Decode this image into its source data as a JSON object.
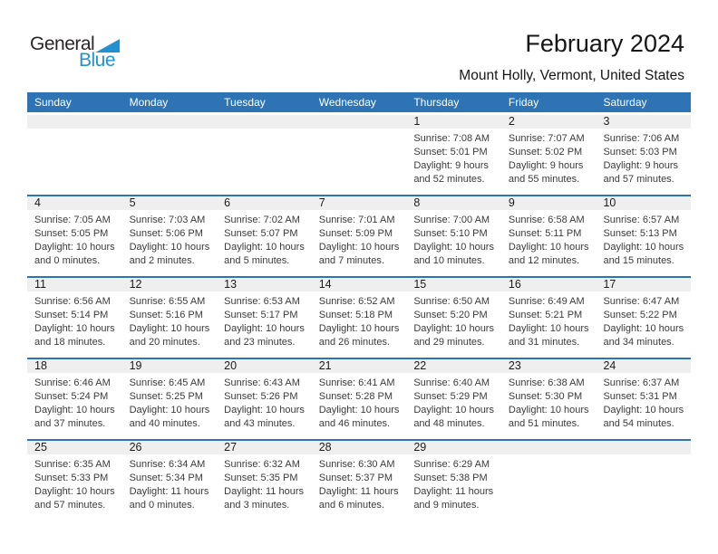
{
  "logo": {
    "part1": "General",
    "part2": "Blue",
    "triangle_icon": "blue-right-triangle"
  },
  "title": "February 2024",
  "subtitle": "Mount Holly, Vermont, United States",
  "colors": {
    "header_blue": "#2e74b5",
    "band_gray": "#efefef",
    "logo_blue": "#2191d0",
    "cell_text": "#3b3b3b"
  },
  "weekdays": [
    "Sunday",
    "Monday",
    "Tuesday",
    "Wednesday",
    "Thursday",
    "Friday",
    "Saturday"
  ],
  "labels": {
    "sunrise": "Sunrise:",
    "sunset": "Sunset:",
    "daylight": "Daylight:"
  },
  "weeks": [
    [
      null,
      null,
      null,
      null,
      {
        "day": "1",
        "sunrise": "7:08 AM",
        "sunset": "5:01 PM",
        "daylight": "9 hours and 52 minutes."
      },
      {
        "day": "2",
        "sunrise": "7:07 AM",
        "sunset": "5:02 PM",
        "daylight": "9 hours and 55 minutes."
      },
      {
        "day": "3",
        "sunrise": "7:06 AM",
        "sunset": "5:03 PM",
        "daylight": "9 hours and 57 minutes."
      }
    ],
    [
      {
        "day": "4",
        "sunrise": "7:05 AM",
        "sunset": "5:05 PM",
        "daylight": "10 hours and 0 minutes."
      },
      {
        "day": "5",
        "sunrise": "7:03 AM",
        "sunset": "5:06 PM",
        "daylight": "10 hours and 2 minutes."
      },
      {
        "day": "6",
        "sunrise": "7:02 AM",
        "sunset": "5:07 PM",
        "daylight": "10 hours and 5 minutes."
      },
      {
        "day": "7",
        "sunrise": "7:01 AM",
        "sunset": "5:09 PM",
        "daylight": "10 hours and 7 minutes."
      },
      {
        "day": "8",
        "sunrise": "7:00 AM",
        "sunset": "5:10 PM",
        "daylight": "10 hours and 10 minutes."
      },
      {
        "day": "9",
        "sunrise": "6:58 AM",
        "sunset": "5:11 PM",
        "daylight": "10 hours and 12 minutes."
      },
      {
        "day": "10",
        "sunrise": "6:57 AM",
        "sunset": "5:13 PM",
        "daylight": "10 hours and 15 minutes."
      }
    ],
    [
      {
        "day": "11",
        "sunrise": "6:56 AM",
        "sunset": "5:14 PM",
        "daylight": "10 hours and 18 minutes."
      },
      {
        "day": "12",
        "sunrise": "6:55 AM",
        "sunset": "5:16 PM",
        "daylight": "10 hours and 20 minutes."
      },
      {
        "day": "13",
        "sunrise": "6:53 AM",
        "sunset": "5:17 PM",
        "daylight": "10 hours and 23 minutes."
      },
      {
        "day": "14",
        "sunrise": "6:52 AM",
        "sunset": "5:18 PM",
        "daylight": "10 hours and 26 minutes."
      },
      {
        "day": "15",
        "sunrise": "6:50 AM",
        "sunset": "5:20 PM",
        "daylight": "10 hours and 29 minutes."
      },
      {
        "day": "16",
        "sunrise": "6:49 AM",
        "sunset": "5:21 PM",
        "daylight": "10 hours and 31 minutes."
      },
      {
        "day": "17",
        "sunrise": "6:47 AM",
        "sunset": "5:22 PM",
        "daylight": "10 hours and 34 minutes."
      }
    ],
    [
      {
        "day": "18",
        "sunrise": "6:46 AM",
        "sunset": "5:24 PM",
        "daylight": "10 hours and 37 minutes."
      },
      {
        "day": "19",
        "sunrise": "6:45 AM",
        "sunset": "5:25 PM",
        "daylight": "10 hours and 40 minutes."
      },
      {
        "day": "20",
        "sunrise": "6:43 AM",
        "sunset": "5:26 PM",
        "daylight": "10 hours and 43 minutes."
      },
      {
        "day": "21",
        "sunrise": "6:41 AM",
        "sunset": "5:28 PM",
        "daylight": "10 hours and 46 minutes."
      },
      {
        "day": "22",
        "sunrise": "6:40 AM",
        "sunset": "5:29 PM",
        "daylight": "10 hours and 48 minutes."
      },
      {
        "day": "23",
        "sunrise": "6:38 AM",
        "sunset": "5:30 PM",
        "daylight": "10 hours and 51 minutes."
      },
      {
        "day": "24",
        "sunrise": "6:37 AM",
        "sunset": "5:31 PM",
        "daylight": "10 hours and 54 minutes."
      }
    ],
    [
      {
        "day": "25",
        "sunrise": "6:35 AM",
        "sunset": "5:33 PM",
        "daylight": "10 hours and 57 minutes."
      },
      {
        "day": "26",
        "sunrise": "6:34 AM",
        "sunset": "5:34 PM",
        "daylight": "11 hours and 0 minutes."
      },
      {
        "day": "27",
        "sunrise": "6:32 AM",
        "sunset": "5:35 PM",
        "daylight": "11 hours and 3 minutes."
      },
      {
        "day": "28",
        "sunrise": "6:30 AM",
        "sunset": "5:37 PM",
        "daylight": "11 hours and 6 minutes."
      },
      {
        "day": "29",
        "sunrise": "6:29 AM",
        "sunset": "5:38 PM",
        "daylight": "11 hours and 9 minutes."
      },
      null,
      null
    ]
  ]
}
